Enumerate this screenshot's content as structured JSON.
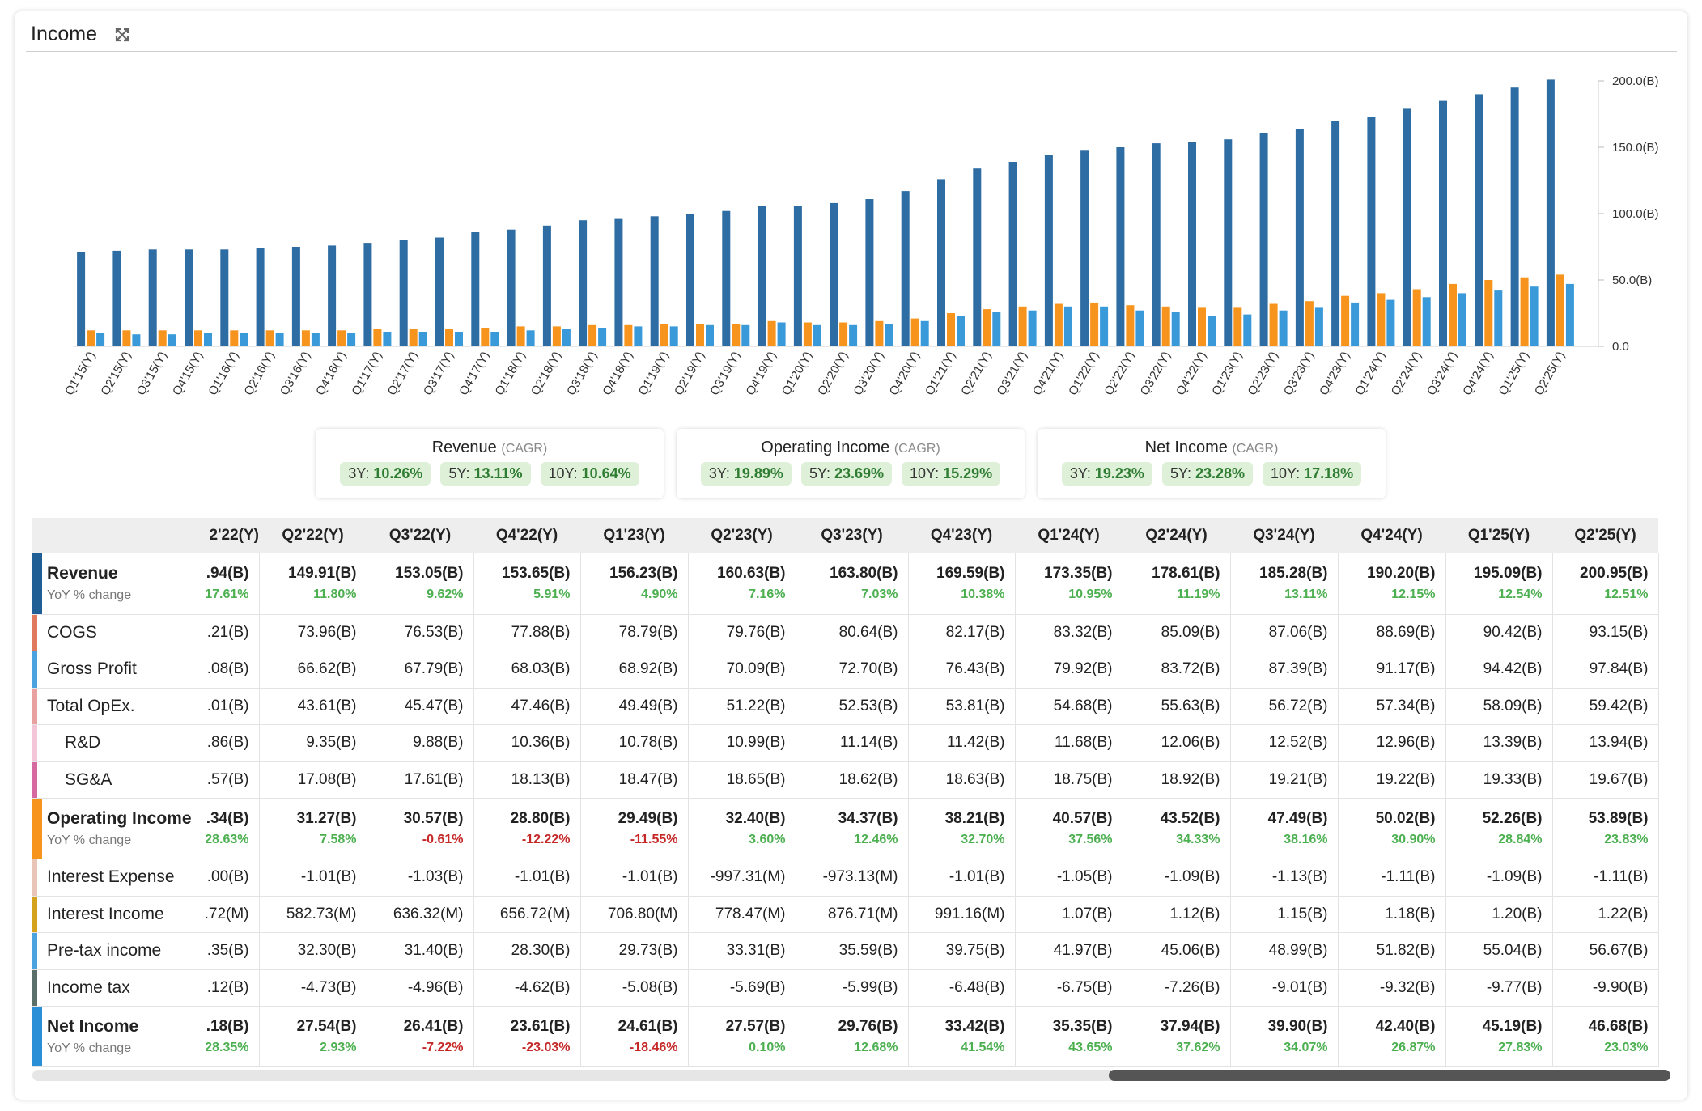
{
  "card": {
    "title": "Income"
  },
  "chart_data": {
    "type": "bar",
    "categories": [
      "Q1'15(Y)",
      "Q2'15(Y)",
      "Q3'15(Y)",
      "Q4'15(Y)",
      "Q1'16(Y)",
      "Q2'16(Y)",
      "Q3'16(Y)",
      "Q4'16(Y)",
      "Q1'17(Y)",
      "Q2'17(Y)",
      "Q3'17(Y)",
      "Q4'17(Y)",
      "Q1'18(Y)",
      "Q2'18(Y)",
      "Q3'18(Y)",
      "Q4'18(Y)",
      "Q1'19(Y)",
      "Q2'19(Y)",
      "Q3'19(Y)",
      "Q4'19(Y)",
      "Q1'20(Y)",
      "Q2'20(Y)",
      "Q3'20(Y)",
      "Q4'20(Y)",
      "Q1'21(Y)",
      "Q2'21(Y)",
      "Q3'21(Y)",
      "Q4'21(Y)",
      "Q1'22(Y)",
      "Q2'22(Y)",
      "Q3'22(Y)",
      "Q4'22(Y)",
      "Q1'23(Y)",
      "Q2'23(Y)",
      "Q3'23(Y)",
      "Q4'23(Y)",
      "Q1'24(Y)",
      "Q2'24(Y)",
      "Q3'24(Y)",
      "Q4'24(Y)",
      "Q1'25(Y)",
      "Q2'25(Y)"
    ],
    "series": [
      {
        "color": "#2e6da4",
        "values": [
          71,
          72,
          73,
          73,
          73,
          74,
          75,
          76,
          78,
          80,
          82,
          86,
          88,
          91,
          95,
          96,
          98,
          100,
          102,
          106,
          106,
          108,
          111,
          117,
          126,
          134,
          139,
          144,
          148,
          150,
          153,
          154,
          156,
          161,
          164,
          170,
          173,
          179,
          185,
          190,
          195,
          201
        ]
      },
      {
        "color": "#f7941d",
        "values": [
          12,
          12,
          12,
          12,
          12,
          12,
          12,
          12,
          13,
          13,
          13,
          14,
          15,
          15,
          16,
          16,
          17,
          17,
          17,
          19,
          18,
          18,
          19,
          21,
          25,
          28,
          30,
          32,
          33,
          31,
          30,
          29,
          29,
          32,
          34,
          38,
          40,
          43,
          47,
          50,
          52,
          54
        ]
      },
      {
        "color": "#3a9ad9",
        "values": [
          10,
          9,
          9,
          10,
          10,
          10,
          10,
          10,
          11,
          11,
          11,
          11,
          12,
          13,
          14,
          15,
          15,
          16,
          16,
          18,
          16,
          16,
          17,
          19,
          23,
          26,
          27,
          30,
          30,
          27,
          26,
          23,
          24,
          27,
          29,
          33,
          35,
          37,
          40,
          42,
          45,
          47
        ]
      }
    ],
    "yticks": [
      "200.0(B)",
      "150.0(B)",
      "100.0(B)",
      "50.0(B)",
      "0.0"
    ],
    "ylim": [
      0,
      200
    ],
    "grid": false
  },
  "cagr": [
    {
      "title": "Revenue",
      "sub": "(CAGR)",
      "y3": "3Y: ",
      "v3": "10.26%",
      "y5": "5Y: ",
      "v5": "13.11%",
      "y10": "10Y: ",
      "v10": "10.64%"
    },
    {
      "title": "Operating Income",
      "sub": "(CAGR)",
      "y3": "3Y: ",
      "v3": "19.89%",
      "y5": "5Y: ",
      "v5": "23.69%",
      "y10": "10Y: ",
      "v10": "15.29%"
    },
    {
      "title": "Net Income",
      "sub": "(CAGR)",
      "y3": "3Y: ",
      "v3": "19.23%",
      "y5": "5Y: ",
      "v5": "23.28%",
      "y10": "10Y: ",
      "v10": "17.18%"
    }
  ],
  "table": {
    "columns": [
      "2'22(Y)",
      "Q2'22(Y)",
      "Q3'22(Y)",
      "Q4'22(Y)",
      "Q1'23(Y)",
      "Q2'23(Y)",
      "Q3'23(Y)",
      "Q4'23(Y)",
      "Q1'24(Y)",
      "Q2'24(Y)",
      "Q3'24(Y)",
      "Q4'24(Y)",
      "Q1'25(Y)",
      "Q2'25(Y)"
    ],
    "rows": [
      {
        "label": "Revenue",
        "yoy_label": "YoY % change",
        "color": "#1f5f95",
        "bold": true,
        "values": [
          ".94(B)",
          "149.91(B)",
          "153.05(B)",
          "153.65(B)",
          "156.23(B)",
          "160.63(B)",
          "163.80(B)",
          "169.59(B)",
          "173.35(B)",
          "178.61(B)",
          "185.28(B)",
          "190.20(B)",
          "195.09(B)",
          "200.95(B)"
        ],
        "yoy": [
          "17.61%",
          "11.80%",
          "9.62%",
          "5.91%",
          "4.90%",
          "7.16%",
          "7.03%",
          "10.38%",
          "10.95%",
          "11.19%",
          "13.11%",
          "12.15%",
          "12.54%",
          "12.51%"
        ]
      },
      {
        "label": "COGS",
        "color": "#e07a5f",
        "values": [
          ".21(B)",
          "73.96(B)",
          "76.53(B)",
          "77.88(B)",
          "78.79(B)",
          "79.76(B)",
          "80.64(B)",
          "82.17(B)",
          "83.32(B)",
          "85.09(B)",
          "87.06(B)",
          "88.69(B)",
          "90.42(B)",
          "93.15(B)"
        ]
      },
      {
        "label": "Gross Profit",
        "color": "#4aa3df",
        "values": [
          ".08(B)",
          "66.62(B)",
          "67.79(B)",
          "68.03(B)",
          "68.92(B)",
          "70.09(B)",
          "72.70(B)",
          "76.43(B)",
          "79.92(B)",
          "83.72(B)",
          "87.39(B)",
          "91.17(B)",
          "94.42(B)",
          "97.84(B)"
        ]
      },
      {
        "label": "Total OpEx.",
        "color": "#e8a0a0",
        "values": [
          ".01(B)",
          "43.61(B)",
          "45.47(B)",
          "47.46(B)",
          "49.49(B)",
          "51.22(B)",
          "52.53(B)",
          "53.81(B)",
          "54.68(B)",
          "55.63(B)",
          "56.72(B)",
          "57.34(B)",
          "58.09(B)",
          "59.42(B)"
        ]
      },
      {
        "label": "R&D",
        "color": "#f2c6d6",
        "sub": true,
        "values": [
          ".86(B)",
          "9.35(B)",
          "9.88(B)",
          "10.36(B)",
          "10.78(B)",
          "10.99(B)",
          "11.14(B)",
          "11.42(B)",
          "11.68(B)",
          "12.06(B)",
          "12.52(B)",
          "12.96(B)",
          "13.39(B)",
          "13.94(B)"
        ]
      },
      {
        "label": "SG&A",
        "color": "#d66aa0",
        "sub": true,
        "values": [
          ".57(B)",
          "17.08(B)",
          "17.61(B)",
          "18.13(B)",
          "18.47(B)",
          "18.65(B)",
          "18.62(B)",
          "18.63(B)",
          "18.75(B)",
          "18.92(B)",
          "19.21(B)",
          "19.22(B)",
          "19.33(B)",
          "19.67(B)"
        ]
      },
      {
        "label": "Operating Income",
        "yoy_label": "YoY % change",
        "color": "#f7941d",
        "bold": true,
        "values": [
          ".34(B)",
          "31.27(B)",
          "30.57(B)",
          "28.80(B)",
          "29.49(B)",
          "32.40(B)",
          "34.37(B)",
          "38.21(B)",
          "40.57(B)",
          "43.52(B)",
          "47.49(B)",
          "50.02(B)",
          "52.26(B)",
          "53.89(B)"
        ],
        "yoy": [
          "28.63%",
          "7.58%",
          "-0.61%",
          "-12.22%",
          "-11.55%",
          "3.60%",
          "12.46%",
          "32.70%",
          "37.56%",
          "34.33%",
          "38.16%",
          "30.90%",
          "28.84%",
          "23.83%"
        ]
      },
      {
        "label": "Interest Expense",
        "color": "#e9c5b8",
        "values": [
          ".00(B)",
          "-1.01(B)",
          "-1.03(B)",
          "-1.01(B)",
          "-1.01(B)",
          "-997.31(M)",
          "-973.13(M)",
          "-1.01(B)",
          "-1.05(B)",
          "-1.09(B)",
          "-1.13(B)",
          "-1.11(B)",
          "-1.09(B)",
          "-1.11(B)"
        ]
      },
      {
        "label": "Interest Income",
        "color": "#d4a21c",
        "values": [
          ".72(M)",
          "582.73(M)",
          "636.32(M)",
          "656.72(M)",
          "706.80(M)",
          "778.47(M)",
          "876.71(M)",
          "991.16(M)",
          "1.07(B)",
          "1.12(B)",
          "1.15(B)",
          "1.18(B)",
          "1.20(B)",
          "1.22(B)"
        ]
      },
      {
        "label": "Pre-tax income",
        "color": "#4aa3df",
        "values": [
          ".35(B)",
          "32.30(B)",
          "31.40(B)",
          "28.30(B)",
          "29.73(B)",
          "33.31(B)",
          "35.59(B)",
          "39.75(B)",
          "41.97(B)",
          "45.06(B)",
          "48.99(B)",
          "51.82(B)",
          "55.04(B)",
          "56.67(B)"
        ]
      },
      {
        "label": "Income tax",
        "color": "#5b6f6a",
        "values": [
          ".12(B)",
          "-4.73(B)",
          "-4.96(B)",
          "-4.62(B)",
          "-5.08(B)",
          "-5.69(B)",
          "-5.99(B)",
          "-6.48(B)",
          "-6.75(B)",
          "-7.26(B)",
          "-9.01(B)",
          "-9.32(B)",
          "-9.77(B)",
          "-9.90(B)"
        ]
      },
      {
        "label": "Net Income",
        "yoy_label": "YoY % change",
        "color": "#2a8fd6",
        "bold": true,
        "values": [
          ".18(B)",
          "27.54(B)",
          "26.41(B)",
          "23.61(B)",
          "24.61(B)",
          "27.57(B)",
          "29.76(B)",
          "33.42(B)",
          "35.35(B)",
          "37.94(B)",
          "39.90(B)",
          "42.40(B)",
          "45.19(B)",
          "46.68(B)"
        ],
        "yoy": [
          "28.35%",
          "2.93%",
          "-7.22%",
          "-23.03%",
          "-18.46%",
          "0.10%",
          "12.68%",
          "41.54%",
          "43.65%",
          "37.62%",
          "34.07%",
          "26.87%",
          "27.83%",
          "23.03%"
        ]
      }
    ]
  }
}
